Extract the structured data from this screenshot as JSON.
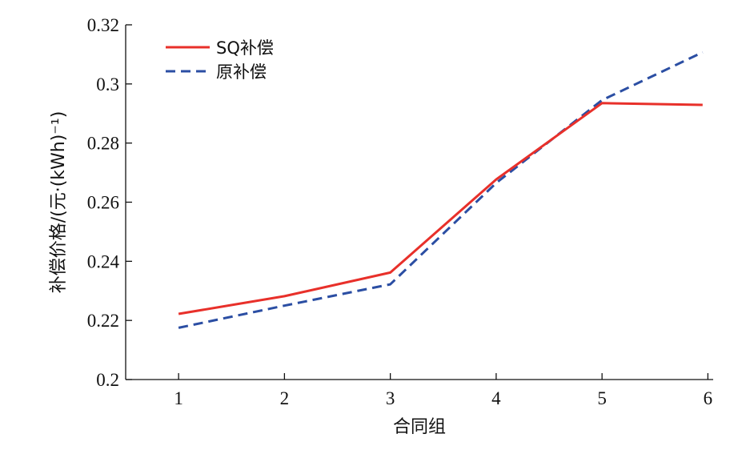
{
  "chart_data": {
    "type": "line",
    "xlabel": "合同组",
    "ylabel": "补偿价格/(元·(kWh)⁻¹)",
    "x": [
      1,
      2,
      3,
      4,
      5,
      5.95
    ],
    "xticks": [
      1,
      2,
      3,
      4,
      5,
      6
    ],
    "xlim": [
      0.5,
      6.05
    ],
    "yticks": [
      0.2,
      0.22,
      0.24,
      0.26,
      0.28,
      0.3,
      0.32
    ],
    "ytick_labels": [
      "0.2",
      "0.22",
      "0.24",
      "0.26",
      "0.28",
      "0.3",
      "0.32"
    ],
    "ylim": [
      0.2,
      0.32
    ],
    "grid": false,
    "legend_position": "top-left",
    "series": [
      {
        "name": "SQ补偿",
        "color": "#e8302a",
        "dash": "solid",
        "values": [
          0.2222,
          0.2282,
          0.2362,
          0.2677,
          0.2935,
          0.2929
        ]
      },
      {
        "name": "原补偿",
        "color": "#2b4ea3",
        "dash": "dashed",
        "values": [
          0.2175,
          0.225,
          0.2322,
          0.2665,
          0.2945,
          0.3107
        ]
      }
    ]
  }
}
